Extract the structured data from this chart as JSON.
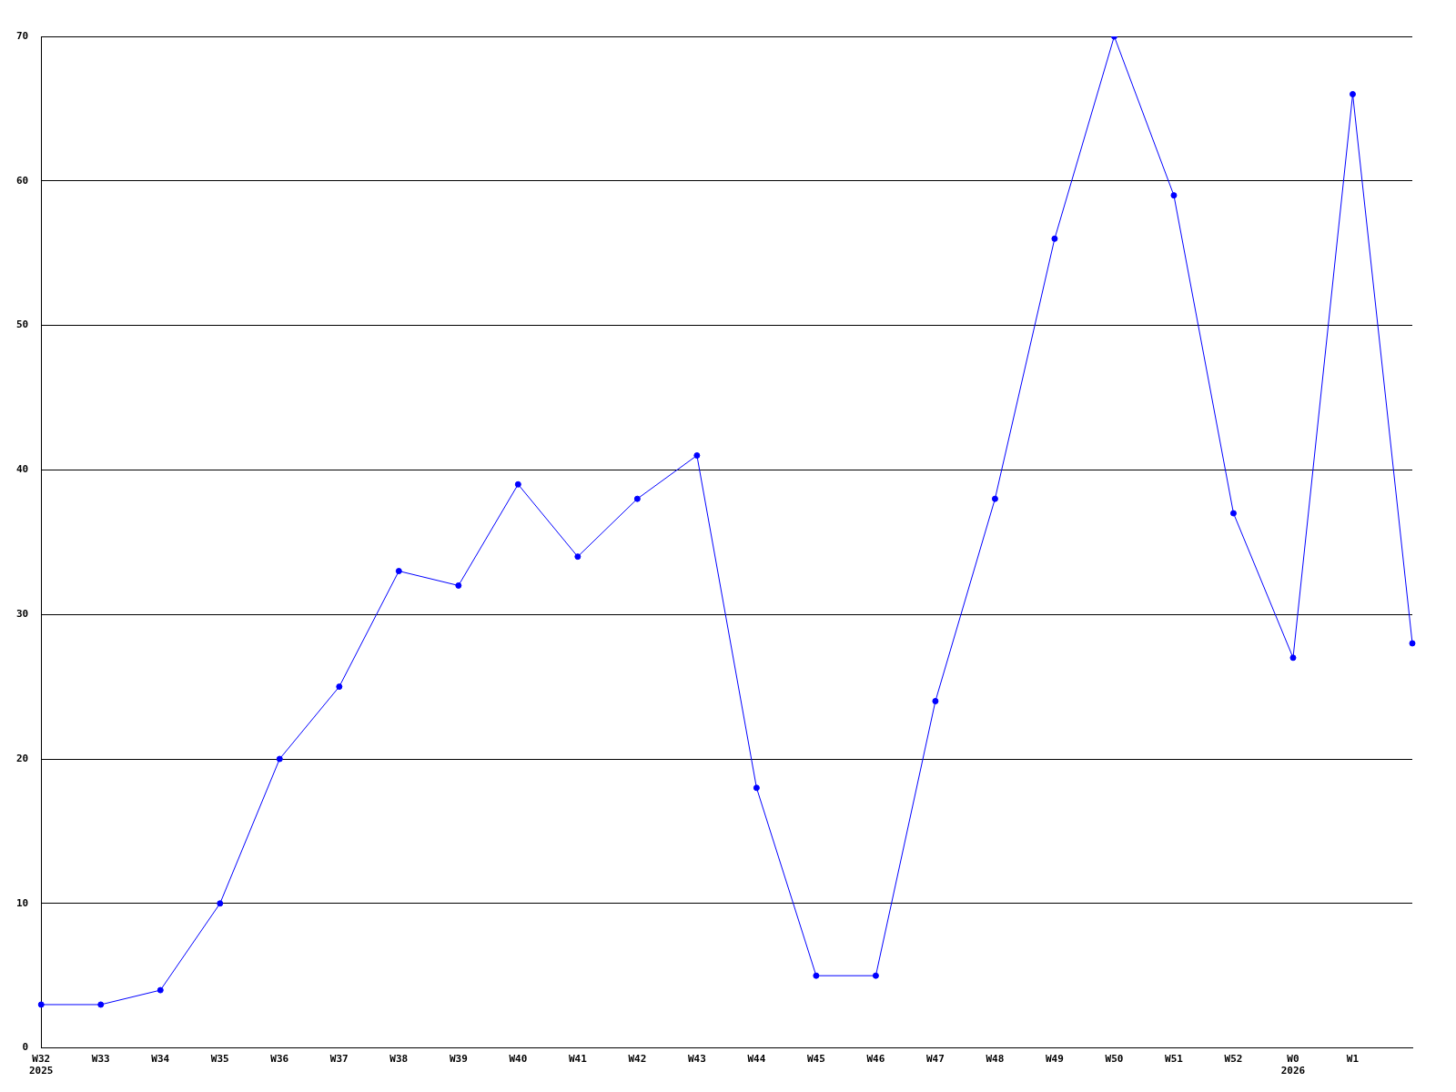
{
  "chart_data": {
    "type": "line",
    "categories": [
      "W32\n2025",
      "W33",
      "W34",
      "W35",
      "W36",
      "W37",
      "W38",
      "W39",
      "W40",
      "W41",
      "W42",
      "W43",
      "W44",
      "W45",
      "W46",
      "W47",
      "W48",
      "W49",
      "W50",
      "W51",
      "W52",
      "W0\n2026",
      "W1",
      null
    ],
    "series": [
      {
        "color": "#0000ff",
        "values": [
          3,
          3,
          4,
          10,
          20,
          25,
          33,
          32,
          39,
          34,
          38,
          41,
          18,
          5,
          5,
          24,
          38,
          56,
          70,
          59,
          37,
          27,
          66,
          28
        ]
      }
    ],
    "ylim": [
      0,
      70
    ],
    "yticks": [
      0,
      10,
      20,
      30,
      40,
      50,
      60,
      70
    ],
    "grid": "y",
    "legend": false,
    "marker": "circle",
    "line_style": "solid"
  }
}
